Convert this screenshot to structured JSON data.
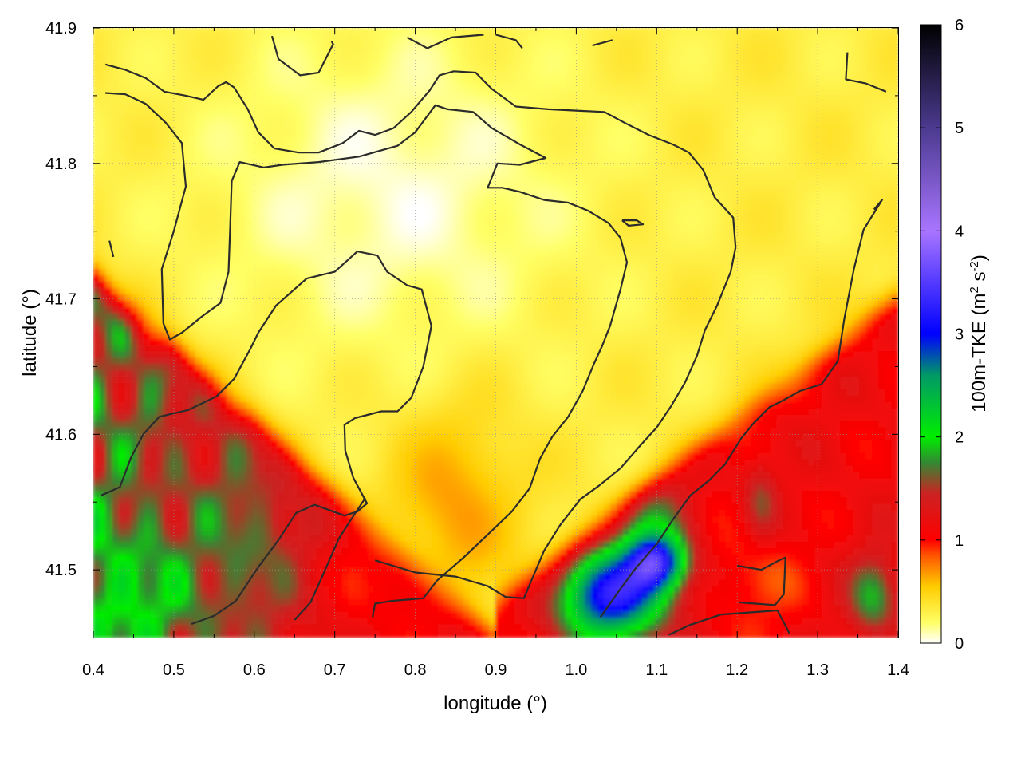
{
  "chart_data": {
    "type": "heatmap",
    "xlabel": "longitude (°)",
    "ylabel": "latitude (°)",
    "colorbar_label": "100m-TKE (m² s⁻²)",
    "colorbar_label_parts": {
      "main": "100m-TKE (m",
      "sup1": "2",
      "mid": " s",
      "sup2": "-2",
      "end": ")"
    },
    "xlim": [
      0.4,
      1.4
    ],
    "ylim": [
      41.45,
      41.9
    ],
    "xticks": [
      "0.4",
      "0.5",
      "0.6",
      "0.7",
      "0.8",
      "0.9",
      "1.0",
      "1.1",
      "1.2",
      "1.3",
      "1.4"
    ],
    "yticks": [
      "41.5",
      "41.6",
      "41.7",
      "41.8",
      "41.9"
    ],
    "cbar_range": [
      0,
      6
    ],
    "cbar_ticks": [
      "0",
      "1",
      "2",
      "3",
      "4",
      "5",
      "6"
    ],
    "grid": true,
    "colormap": [
      {
        "v": 0.0,
        "c": "#ffffff"
      },
      {
        "v": 0.2,
        "c": "#ffff66"
      },
      {
        "v": 0.55,
        "c": "#ffcc00"
      },
      {
        "v": 0.85,
        "c": "#ff5500"
      },
      {
        "v": 1.0,
        "c": "#ff0000"
      },
      {
        "v": 1.45,
        "c": "#cc2222"
      },
      {
        "v": 1.75,
        "c": "#338833"
      },
      {
        "v": 2.0,
        "c": "#00ee00"
      },
      {
        "v": 2.6,
        "c": "#009966"
      },
      {
        "v": 3.0,
        "c": "#0000ff"
      },
      {
        "v": 4.0,
        "c": "#a875ff"
      },
      {
        "v": 5.0,
        "c": "#4b3a8f"
      },
      {
        "v": 6.0,
        "c": "#000000"
      }
    ],
    "field_estimate": {
      "background_north": 0.3,
      "yellow_core_min": 0.05,
      "red_band": 1.1,
      "green_patches": 1.9,
      "blue_max_near": [
        1.04,
        41.48,
        3.3
      ]
    },
    "contours": [
      [
        [
          0.415,
          41.873
        ],
        [
          0.44,
          41.869
        ],
        [
          0.465,
          41.863
        ],
        [
          0.488,
          41.853
        ],
        [
          0.515,
          41.85
        ],
        [
          0.537,
          41.847
        ],
        [
          0.555,
          41.857
        ],
        [
          0.565,
          41.86
        ],
        [
          0.575,
          41.856
        ],
        [
          0.592,
          41.84
        ],
        [
          0.605,
          41.823
        ],
        [
          0.625,
          41.811
        ],
        [
          0.655,
          41.808
        ],
        [
          0.68,
          41.808
        ],
        [
          0.71,
          41.815
        ],
        [
          0.73,
          41.824
        ],
        [
          0.75,
          41.821
        ],
        [
          0.773,
          41.826
        ],
        [
          0.795,
          41.838
        ],
        [
          0.818,
          41.854
        ],
        [
          0.83,
          41.865
        ],
        [
          0.848,
          41.868
        ],
        [
          0.875,
          41.867
        ],
        [
          0.895,
          41.855
        ],
        [
          0.925,
          41.842
        ],
        [
          0.965,
          41.84
        ],
        [
          1.0,
          41.839
        ],
        [
          1.035,
          41.838
        ],
        [
          1.06,
          41.83
        ],
        [
          1.09,
          41.821
        ],
        [
          1.12,
          41.814
        ],
        [
          1.14,
          41.808
        ],
        [
          1.158,
          41.795
        ],
        [
          1.172,
          41.775
        ],
        [
          1.195,
          41.76
        ],
        [
          1.198,
          41.738
        ],
        [
          1.192,
          41.72
        ],
        [
          1.175,
          41.695
        ],
        [
          1.16,
          41.677
        ],
        [
          1.15,
          41.658
        ],
        [
          1.135,
          41.638
        ],
        [
          1.118,
          41.621
        ],
        [
          1.1,
          41.605
        ],
        [
          1.08,
          41.592
        ],
        [
          1.055,
          41.575
        ],
        [
          1.028,
          41.562
        ],
        [
          1.005,
          41.552
        ],
        [
          0.98,
          41.533
        ],
        [
          0.96,
          41.514
        ],
        [
          0.945,
          41.493
        ],
        [
          0.935,
          41.479
        ],
        [
          0.912,
          41.48
        ],
        [
          0.89,
          41.488
        ],
        [
          0.85,
          41.495
        ],
        [
          0.8,
          41.498
        ],
        [
          0.75,
          41.507
        ]
      ],
      [
        [
          0.415,
          41.852
        ],
        [
          0.44,
          41.851
        ],
        [
          0.465,
          41.844
        ],
        [
          0.49,
          41.83
        ],
        [
          0.51,
          41.815
        ],
        [
          0.515,
          41.783
        ],
        [
          0.5,
          41.75
        ],
        [
          0.485,
          41.722
        ],
        [
          0.487,
          41.682
        ],
        [
          0.495,
          41.67
        ],
        [
          0.51,
          41.675
        ],
        [
          0.535,
          41.687
        ],
        [
          0.558,
          41.697
        ],
        [
          0.568,
          41.72
        ],
        [
          0.57,
          41.752
        ],
        [
          0.572,
          41.787
        ],
        [
          0.582,
          41.801
        ],
        [
          0.612,
          41.797
        ],
        [
          0.635,
          41.799
        ],
        [
          0.68,
          41.801
        ],
        [
          0.73,
          41.805
        ],
        [
          0.778,
          41.813
        ],
        [
          0.8,
          41.823
        ],
        [
          0.825,
          41.843
        ],
        [
          0.84,
          41.84
        ],
        [
          0.872,
          41.838
        ],
        [
          0.895,
          41.826
        ],
        [
          0.93,
          41.814
        ],
        [
          0.962,
          41.804
        ],
        [
          0.93,
          41.799
        ],
        [
          0.902,
          41.8
        ],
        [
          0.89,
          41.782
        ],
        [
          0.908,
          41.782
        ],
        [
          0.93,
          41.779
        ],
        [
          0.96,
          41.773
        ],
        [
          0.99,
          41.771
        ],
        [
          1.015,
          41.765
        ],
        [
          1.04,
          41.756
        ],
        [
          1.055,
          41.745
        ],
        [
          1.063,
          41.727
        ],
        [
          1.055,
          41.707
        ],
        [
          1.042,
          41.68
        ],
        [
          1.032,
          41.665
        ],
        [
          1.022,
          41.652
        ],
        [
          1.008,
          41.632
        ],
        [
          0.99,
          41.613
        ],
        [
          0.97,
          41.598
        ],
        [
          0.955,
          41.582
        ],
        [
          0.942,
          41.56
        ],
        [
          0.92,
          41.543
        ],
        [
          0.89,
          41.526
        ],
        [
          0.86,
          41.509
        ],
        [
          0.827,
          41.492
        ],
        [
          0.81,
          41.479
        ],
        [
          0.77,
          41.477
        ],
        [
          0.75,
          41.475
        ],
        [
          0.747,
          41.465
        ]
      ],
      [
        [
          0.41,
          41.555
        ],
        [
          0.433,
          41.561
        ],
        [
          0.447,
          41.583
        ],
        [
          0.462,
          41.6
        ],
        [
          0.482,
          41.613
        ],
        [
          0.518,
          41.618
        ],
        [
          0.553,
          41.628
        ],
        [
          0.575,
          41.641
        ],
        [
          0.595,
          41.663
        ],
        [
          0.605,
          41.675
        ],
        [
          0.627,
          41.695
        ],
        [
          0.665,
          41.715
        ],
        [
          0.7,
          41.72
        ],
        [
          0.728,
          41.735
        ],
        [
          0.753,
          41.732
        ],
        [
          0.765,
          41.72
        ],
        [
          0.79,
          41.71
        ],
        [
          0.808,
          41.707
        ],
        [
          0.82,
          41.68
        ],
        [
          0.81,
          41.65
        ],
        [
          0.795,
          41.627
        ],
        [
          0.778,
          41.617
        ],
        [
          0.758,
          41.617
        ],
        [
          0.725,
          41.612
        ],
        [
          0.712,
          41.607
        ],
        [
          0.713,
          41.588
        ],
        [
          0.723,
          41.568
        ],
        [
          0.74,
          41.549
        ],
        [
          0.728,
          41.543
        ],
        [
          0.712,
          41.54
        ],
        [
          0.675,
          41.548
        ],
        [
          0.652,
          41.542
        ],
        [
          0.63,
          41.522
        ],
        [
          0.605,
          41.502
        ],
        [
          0.577,
          41.477
        ],
        [
          0.55,
          41.466
        ],
        [
          0.522,
          41.46
        ]
      ],
      [
        [
          0.65,
          41.463
        ],
        [
          0.67,
          41.476
        ],
        [
          0.685,
          41.496
        ],
        [
          0.705,
          41.523
        ],
        [
          0.72,
          41.537
        ],
        [
          0.738,
          41.553
        ]
      ],
      [
        [
          1.03,
          41.465
        ],
        [
          1.055,
          41.486
        ],
        [
          1.075,
          41.502
        ],
        [
          1.1,
          41.519
        ],
        [
          1.12,
          41.537
        ],
        [
          1.142,
          41.555
        ],
        [
          1.165,
          41.566
        ],
        [
          1.185,
          41.578
        ],
        [
          1.205,
          41.597
        ],
        [
          1.22,
          41.608
        ],
        [
          1.24,
          41.62
        ],
        [
          1.257,
          41.625
        ],
        [
          1.278,
          41.632
        ],
        [
          1.305,
          41.637
        ],
        [
          1.325,
          41.654
        ],
        [
          1.333,
          41.685
        ],
        [
          1.345,
          41.722
        ],
        [
          1.357,
          41.751
        ],
        [
          1.38,
          41.773
        ],
        [
          1.37,
          41.766
        ]
      ],
      [
        [
          0.42,
          41.743
        ],
        [
          0.425,
          41.731
        ]
      ],
      [
        [
          1.337,
          41.882
        ],
        [
          1.335,
          41.862
        ],
        [
          1.36,
          41.859
        ],
        [
          1.385,
          41.853
        ]
      ],
      [
        [
          0.622,
          41.894
        ],
        [
          0.63,
          41.877
        ],
        [
          0.657,
          41.865
        ],
        [
          0.68,
          41.867
        ],
        [
          0.698,
          41.888
        ],
        [
          0.696,
          41.89
        ]
      ],
      [
        [
          0.79,
          41.893
        ],
        [
          0.815,
          41.885
        ],
        [
          0.845,
          41.893
        ],
        [
          0.885,
          41.895
        ]
      ],
      [
        [
          0.9,
          41.895
        ],
        [
          0.925,
          41.891
        ],
        [
          0.933,
          41.885
        ]
      ],
      [
        [
          1.02,
          41.887
        ],
        [
          1.045,
          41.891
        ]
      ],
      [
        [
          1.057,
          41.758
        ],
        [
          1.075,
          41.758
        ],
        [
          1.083,
          41.755
        ],
        [
          1.065,
          41.754
        ],
        [
          1.057,
          41.758
        ]
      ],
      [
        [
          1.2,
          41.503
        ],
        [
          1.23,
          41.5
        ],
        [
          1.252,
          41.507
        ],
        [
          1.26,
          41.509
        ],
        [
          1.258,
          41.482
        ],
        [
          1.247,
          41.474
        ],
        [
          1.224,
          41.475
        ],
        [
          1.202,
          41.476
        ]
      ],
      [
        [
          1.115,
          41.452
        ],
        [
          1.14,
          41.459
        ],
        [
          1.18,
          41.467
        ],
        [
          1.25,
          41.47
        ],
        [
          1.265,
          41.453
        ]
      ]
    ]
  }
}
